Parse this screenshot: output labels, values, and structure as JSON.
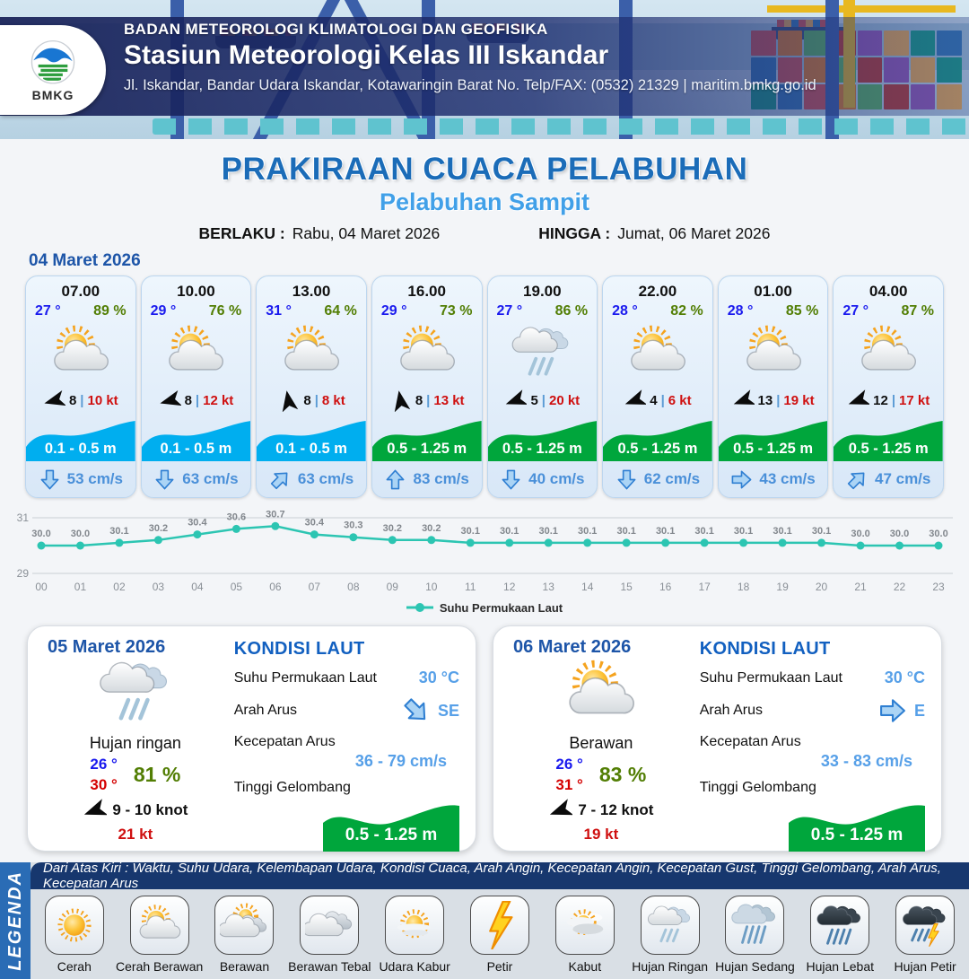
{
  "header": {
    "logo_text": "BMKG",
    "agency": "BADAN METEOROLOGI KLIMATOLOGI DAN GEOFISIKA",
    "station": "Stasiun Meteorologi Kelas III Iskandar",
    "address": "Jl. Iskandar, Bandar Udara Iskandar, Kotawaringin Barat No. Telp/FAX: (0532) 21329 | maritim.bmkg.go.id"
  },
  "title": {
    "main": "PRAKIRAAN CUACA PELABUHAN",
    "subtitle": "Pelabuhan Sampit"
  },
  "validity": {
    "berlaku_label": "BERLAKU :",
    "berlaku_value": "Rabu, 04 Maret 2026",
    "hingga_label": "HINGGA :",
    "hingga_value": "Jumat, 06 Maret 2026"
  },
  "colors": {
    "title_blue": "#1b6cb8",
    "subtitle_blue": "#41a0e8",
    "temp_blue": "#1a1aee",
    "humidity_green": "#527e04",
    "gust_red": "#cf1010",
    "wave_cyan": "#00aeef",
    "wave_green": "#00a63c",
    "current_blue": "#4a90d9",
    "chart_teal": "#2cc5b2"
  },
  "day1": {
    "date": "04 Maret 2026",
    "cards": [
      {
        "time": "07.00",
        "temp": "27 °",
        "humidity": "89 %",
        "icon": "cerah-berawan",
        "wind_deg": 255,
        "wind_val": "8",
        "gust": "10 kt",
        "wave": "0.1 - 0.5 m",
        "wave_color": "#00aeef",
        "current_deg": 180,
        "current": "53 cm/s"
      },
      {
        "time": "10.00",
        "temp": "29 °",
        "humidity": "76 %",
        "icon": "cerah-berawan",
        "wind_deg": 255,
        "wind_val": "8",
        "gust": "12 kt",
        "wave": "0.1 - 0.5 m",
        "wave_color": "#00aeef",
        "current_deg": 180,
        "current": "63 cm/s"
      },
      {
        "time": "13.00",
        "temp": "31 °",
        "humidity": "64 %",
        "icon": "cerah-berawan",
        "wind_deg": 350,
        "wind_val": "8",
        "gust": "8 kt",
        "wave": "0.1 - 0.5 m",
        "wave_color": "#00aeef",
        "current_deg": 45,
        "current": "63 cm/s"
      },
      {
        "time": "16.00",
        "temp": "29 °",
        "humidity": "73 %",
        "icon": "cerah-berawan",
        "wind_deg": 350,
        "wind_val": "8",
        "gust": "13 kt",
        "wave": "0.5 - 1.25 m",
        "wave_color": "#00a63c",
        "current_deg": 0,
        "current": "83 cm/s"
      },
      {
        "time": "19.00",
        "temp": "27 °",
        "humidity": "86 %",
        "icon": "hujan-ringan",
        "wind_deg": 250,
        "wind_val": "5",
        "gust": "20 kt",
        "wave": "0.5 - 1.25 m",
        "wave_color": "#00a63c",
        "current_deg": 180,
        "current": "40 cm/s"
      },
      {
        "time": "22.00",
        "temp": "28 °",
        "humidity": "82 %",
        "icon": "cerah-berawan",
        "wind_deg": 250,
        "wind_val": "4",
        "gust": "6 kt",
        "wave": "0.5 - 1.25 m",
        "wave_color": "#00a63c",
        "current_deg": 180,
        "current": "62 cm/s"
      },
      {
        "time": "01.00",
        "temp": "28 °",
        "humidity": "85 %",
        "icon": "cerah-berawan",
        "wind_deg": 250,
        "wind_val": "13",
        "gust": "19 kt",
        "wave": "0.5 - 1.25 m",
        "wave_color": "#00a63c",
        "current_deg": 90,
        "current": "43 cm/s"
      },
      {
        "time": "04.00",
        "temp": "27 °",
        "humidity": "87 %",
        "icon": "cerah-berawan",
        "wind_deg": 250,
        "wind_val": "12",
        "gust": "17 kt",
        "wave": "0.5 - 1.25 m",
        "wave_color": "#00a63c",
        "current_deg": 45,
        "current": "47 cm/s"
      }
    ]
  },
  "chart_data": {
    "type": "line",
    "x": [
      "00",
      "01",
      "02",
      "03",
      "04",
      "05",
      "06",
      "07",
      "08",
      "09",
      "10",
      "11",
      "12",
      "13",
      "14",
      "15",
      "16",
      "17",
      "18",
      "19",
      "20",
      "21",
      "22",
      "23"
    ],
    "series": [
      {
        "name": "Suhu Permukaan Laut",
        "values": [
          30.0,
          30.0,
          30.1,
          30.2,
          30.4,
          30.6,
          30.7,
          30.4,
          30.3,
          30.2,
          30.2,
          30.1,
          30.1,
          30.1,
          30.1,
          30.1,
          30.1,
          30.1,
          30.1,
          30.1,
          30.1,
          30.0,
          30.0,
          30.0
        ]
      }
    ],
    "ylim": [
      29,
      31
    ],
    "yticks": [
      29,
      31
    ],
    "grid": true,
    "legend_position": "bottom",
    "line_color": "#2cc5b2"
  },
  "day_panels": [
    {
      "date": "05 Maret 2026",
      "icon": "hujan-ringan",
      "condition": "Hujan ringan",
      "temp_min": "26 °",
      "temp_max": "30 °",
      "humidity": "81 %",
      "wind_deg": 250,
      "wind": "9 - 10 knot",
      "gust": "21 kt",
      "sea": {
        "title": "KONDISI LAUT",
        "sst_label": "Suhu Permukaan Laut",
        "sst": "30 °C",
        "current_dir_label": "Arah Arus",
        "current_dir": "SE",
        "current_dir_deg": 135,
        "current_speed_label": "Kecepatan Arus",
        "current_speed": "36 - 79 cm/s",
        "wave_label": "Tinggi Gelombang",
        "wave": "0.5 - 1.25 m",
        "wave_color": "#00a63c"
      }
    },
    {
      "date": "06 Maret 2026",
      "icon": "cerah-berawan",
      "condition": "Berawan",
      "temp_min": "26 °",
      "temp_max": "31 °",
      "humidity": "83 %",
      "wind_deg": 250,
      "wind": "7 - 12 knot",
      "gust": "19 kt",
      "sea": {
        "title": "KONDISI LAUT",
        "sst_label": "Suhu Permukaan Laut",
        "sst": "30 °C",
        "current_dir_label": "Arah Arus",
        "current_dir": "E",
        "current_dir_deg": 90,
        "current_speed_label": "Kecepatan Arus",
        "current_speed": "33 - 83 cm/s",
        "wave_label": "Tinggi Gelombang",
        "wave": "0.5 - 1.25 m",
        "wave_color": "#00a63c"
      }
    }
  ],
  "legend": {
    "strip_label": "LEGENDA",
    "description": "Dari Atas Kiri : Waktu, Suhu Udara, Kelembapan Udara, Kondisi Cuaca, Arah Angin, Kecepatan Angin, Kecepatan Gust, Tinggi Gelombang, Arah Arus, Kecepatan Arus",
    "items": [
      {
        "label": "Cerah",
        "icon": "cerah"
      },
      {
        "label": "Cerah Berawan",
        "icon": "cerah-berawan"
      },
      {
        "label": "Berawan",
        "icon": "berawan"
      },
      {
        "label": "Berawan Tebal",
        "icon": "berawan-tebal"
      },
      {
        "label": "Udara Kabur",
        "icon": "udara-kabur"
      },
      {
        "label": "Petir",
        "icon": "petir"
      },
      {
        "label": "Kabut",
        "icon": "kabut"
      },
      {
        "label": "Hujan Ringan",
        "icon": "hujan-ringan"
      },
      {
        "label": "Hujan Sedang",
        "icon": "hujan-sedang"
      },
      {
        "label": "Hujan Lebat",
        "icon": "hujan-lebat"
      },
      {
        "label": "Hujan Petir",
        "icon": "hujan-petir"
      }
    ]
  }
}
